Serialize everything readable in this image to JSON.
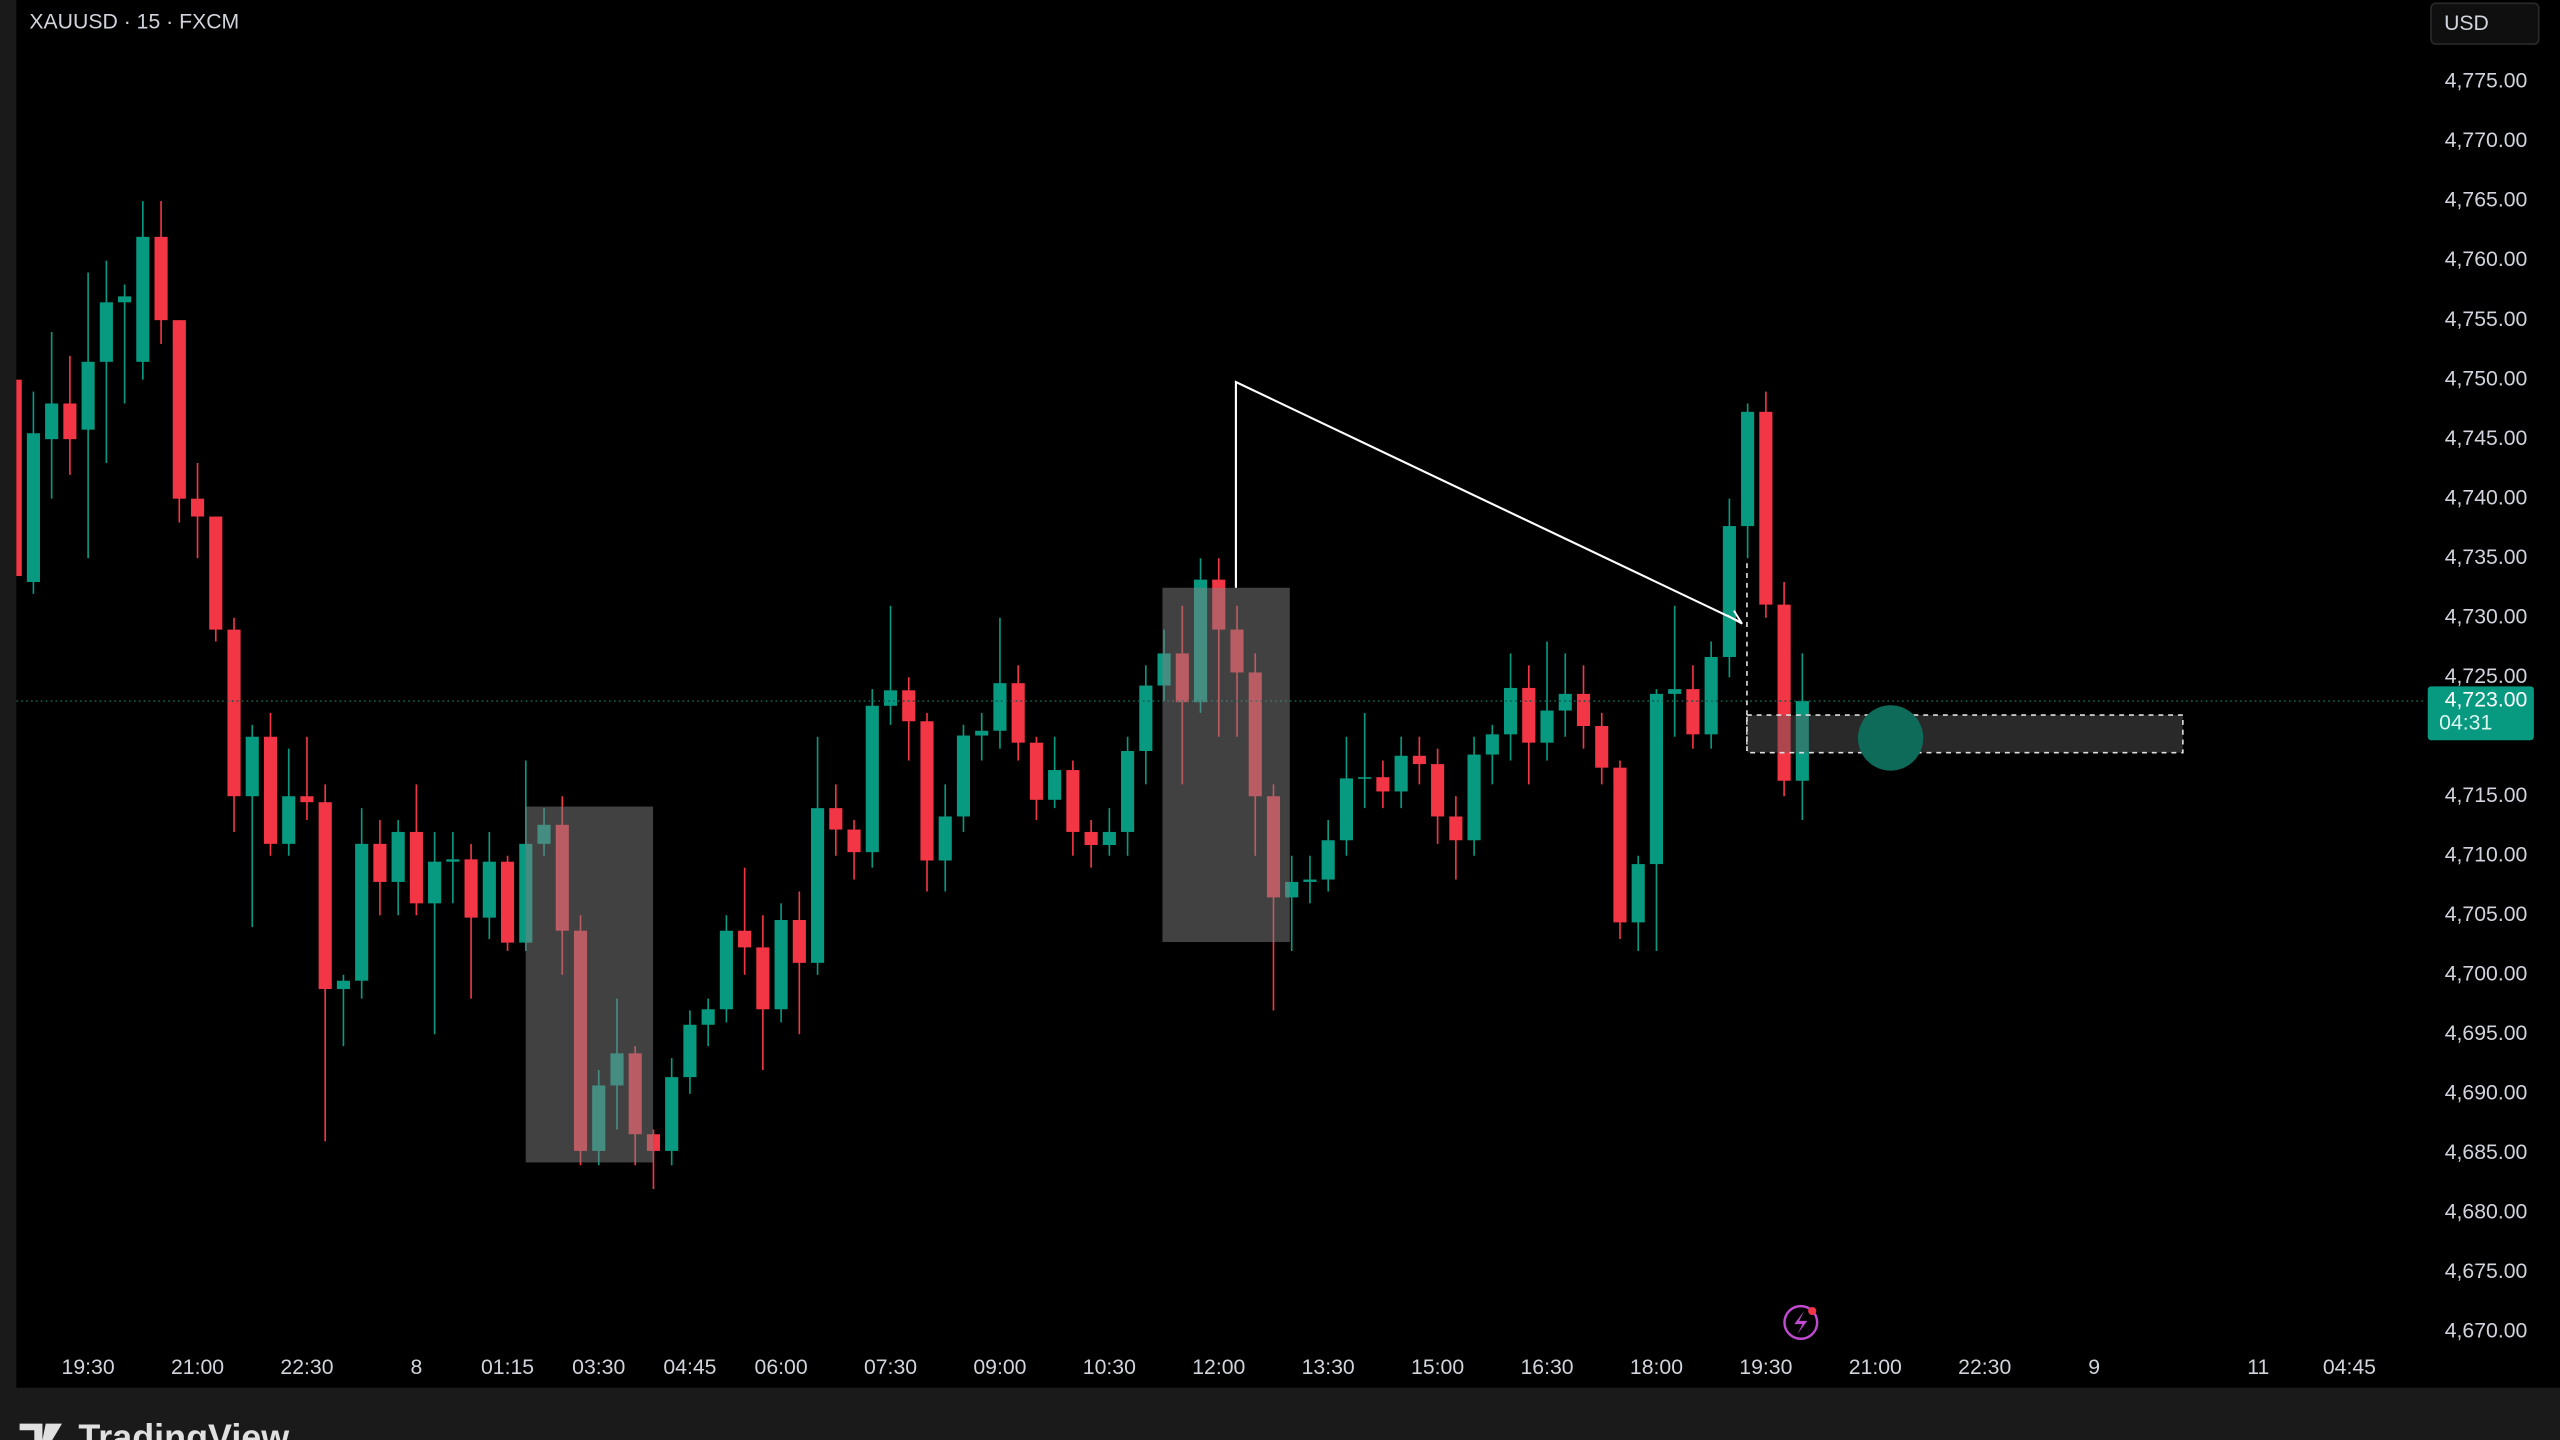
{
  "chart_data": {
    "type": "candlestick",
    "title": "XAUUSD · 15 · FXCM",
    "currency": "USD",
    "brand": "TradingView",
    "up_color": "#089981",
    "down_color": "#f23645",
    "grid": false,
    "open": [
      4750,
      4733,
      4745,
      4748,
      4745.8,
      4751.5,
      4756.5,
      4751.5,
      4762,
      4755,
      4740,
      4738.5,
      4729,
      4715,
      4720,
      4711,
      4715,
      4714.5,
      4698.8,
      4699.5,
      4711,
      4707.8,
      4712,
      4706,
      4709.5,
      4709.7,
      4704.8,
      4709.5,
      4702.7,
      4711,
      4712.6,
      4703.7,
      4685.2,
      4690.7,
      4693.4,
      4686.6,
      4685.2,
      4691.4,
      4695.8,
      4697.1,
      4703.7,
      4702.3,
      4697.1,
      4704.6,
      4701,
      4714,
      4712.2,
      4710.3,
      4722.6,
      4723.9,
      4721.3,
      4709.6,
      4713.3,
      4720.1,
      4720.5,
      4724.5,
      4719.5,
      4714.7,
      4717.2,
      4712,
      4710.9,
      4712,
      4718.8,
      4724.3,
      4727,
      4722.9,
      4733.2,
      4729,
      4725.4,
      4715,
      4706.5,
      4707.8,
      4708,
      4711.3,
      4716.5,
      4716.6,
      4715.4,
      4718.4,
      4717.7,
      4713.3,
      4711.3,
      4718.5,
      4720.2,
      4724.1,
      4719.5,
      4722.2,
      4723.6,
      4720.9,
      4717.4,
      4704.4,
      4709.3,
      4723.6,
      4724,
      4720.2,
      4726.7,
      4737.7,
      4747.3,
      4731.1,
      4716.3
    ],
    "high": [
      4750,
      4749,
      4754,
      4752,
      4759,
      4760,
      4758,
      4765,
      4765,
      4755,
      4743,
      4738.5,
      4730,
      4721,
      4722,
      4719,
      4720,
      4716,
      4700,
      4714,
      4713,
      4713,
      4716,
      4712,
      4712,
      4711,
      4712,
      4710,
      4718,
      4714,
      4715,
      4705,
      4692,
      4698,
      4694,
      4687,
      4693,
      4697,
      4698,
      4705,
      4709,
      4705,
      4706,
      4707,
      4720,
      4716,
      4713,
      4724,
      4731,
      4725,
      4722,
      4716,
      4721,
      4722,
      4730,
      4726,
      4720,
      4720,
      4718,
      4713,
      4714,
      4720,
      4726,
      4729,
      4731,
      4735,
      4735,
      4731,
      4727,
      4716,
      4710,
      4710,
      4713,
      4720,
      4722,
      4718,
      4720,
      4720,
      4719,
      4715,
      4720,
      4721,
      4727,
      4726,
      4728,
      4727,
      4726,
      4722,
      4718,
      4710,
      4724,
      4731,
      4726,
      4728,
      4740,
      4748,
      4749,
      4733,
      4727
    ],
    "low": [
      4733,
      4732,
      4740,
      4742,
      4735,
      4743,
      4748,
      4750,
      4753,
      4738,
      4735,
      4728,
      4712,
      4704,
      4710,
      4710,
      4713,
      4686,
      4694,
      4698,
      4705,
      4705,
      4705,
      4695,
      4706,
      4698,
      4703,
      4702,
      4702,
      4710,
      4700,
      4684,
      4684,
      4687,
      4684,
      4682,
      4684,
      4690,
      4694,
      4696,
      4700,
      4692,
      4696,
      4695,
      4700,
      4710,
      4708,
      4709,
      4721,
      4718,
      4707,
      4707,
      4712,
      4718,
      4719,
      4718,
      4713,
      4714,
      4710,
      4709,
      4710,
      4710,
      4716,
      4723,
      4716,
      4722,
      4720,
      4720,
      4710,
      4697,
      4702,
      4706,
      4707,
      4710,
      4714,
      4714,
      4714,
      4716,
      4711,
      4708,
      4710,
      4716,
      4718,
      4716,
      4718,
      4720,
      4719,
      4716,
      4703,
      4702,
      4702,
      4720,
      4719,
      4719,
      4725,
      4735,
      4730,
      4715,
      4713
    ],
    "close": [
      4733.5,
      4745.5,
      4748,
      4745,
      4751.5,
      4756.5,
      4757,
      4762,
      4755,
      4740,
      4738.5,
      4729,
      4715,
      4720,
      4711,
      4715,
      4714.5,
      4698.8,
      4699.5,
      4711,
      4707.8,
      4712,
      4706,
      4709.5,
      4709.7,
      4704.8,
      4709.5,
      4702.7,
      4711,
      4712.6,
      4703.7,
      4685.2,
      4690.7,
      4693.4,
      4686.6,
      4685.2,
      4691.4,
      4695.8,
      4697.1,
      4703.7,
      4702.3,
      4697.1,
      4704.6,
      4701,
      4714,
      4712.2,
      4710.3,
      4722.6,
      4723.9,
      4721.3,
      4709.6,
      4713.3,
      4720.1,
      4720.5,
      4724.5,
      4719.5,
      4714.7,
      4717.2,
      4712,
      4710.9,
      4712,
      4718.8,
      4724.3,
      4727,
      4722.9,
      4733.2,
      4729,
      4725.4,
      4715,
      4706.5,
      4707.8,
      4708,
      4711.3,
      4716.5,
      4716.6,
      4715.4,
      4718.4,
      4717.7,
      4713.3,
      4711.3,
      4718.5,
      4720.2,
      4724.1,
      4719.5,
      4722.2,
      4723.6,
      4720.9,
      4717.4,
      4704.4,
      4709.3,
      4723.6,
      4724,
      4720.2,
      4726.7,
      4737.7,
      4747.3,
      4731.1,
      4716.3,
      4723
    ],
    "xlim": [
      0,
      132
    ],
    "xticks": [
      {
        "value": 4,
        "label": "19:30"
      },
      {
        "value": 10,
        "label": "21:00"
      },
      {
        "value": 16,
        "label": "22:30"
      },
      {
        "value": 22,
        "label": "8"
      },
      {
        "value": 27,
        "label": "01:15"
      },
      {
        "value": 32,
        "label": "03:30"
      },
      {
        "value": 37,
        "label": "04:45"
      },
      {
        "value": 42,
        "label": "06:00"
      },
      {
        "value": 48,
        "label": "07:30"
      },
      {
        "value": 54,
        "label": "09:00"
      },
      {
        "value": 60,
        "label": "10:30"
      },
      {
        "value": 66,
        "label": "12:00"
      },
      {
        "value": 72,
        "label": "13:30"
      },
      {
        "value": 78,
        "label": "15:00"
      },
      {
        "value": 84,
        "label": "16:30"
      },
      {
        "value": 90,
        "label": "18:00"
      },
      {
        "value": 96,
        "label": "19:30"
      },
      {
        "value": 102,
        "label": "21:00"
      },
      {
        "value": 108,
        "label": "22:30"
      },
      {
        "value": 114,
        "label": "9"
      },
      {
        "value": 123,
        "label": "11"
      },
      {
        "value": 128,
        "label": "04:45"
      }
    ],
    "ylim": [
      4665.3,
      4781.9
    ],
    "yticks": [
      {
        "value": 4670,
        "label": "4,670.00"
      },
      {
        "value": 4675,
        "label": "4,675.00"
      },
      {
        "value": 4680,
        "label": "4,680.00"
      },
      {
        "value": 4685,
        "label": "4,685.00"
      },
      {
        "value": 4690,
        "label": "4,690.00"
      },
      {
        "value": 4695,
        "label": "4,695.00"
      },
      {
        "value": 4700,
        "label": "4,700.00"
      },
      {
        "value": 4705,
        "label": "4,705.00"
      },
      {
        "value": 4710,
        "label": "4,710.00"
      },
      {
        "value": 4715,
        "label": "4,715.00"
      },
      {
        "value": 4725,
        "label": "4,725.00"
      },
      {
        "value": 4730,
        "label": "4,730.00"
      },
      {
        "value": 4735,
        "label": "4,735.00"
      },
      {
        "value": 4740,
        "label": "4,740.00"
      },
      {
        "value": 4745,
        "label": "4,745.00"
      },
      {
        "value": 4750,
        "label": "4,750.00"
      },
      {
        "value": 4755,
        "label": "4,755.00"
      },
      {
        "value": 4760,
        "label": "4,760.00"
      },
      {
        "value": 4765,
        "label": "4,765.00"
      },
      {
        "value": 4770,
        "label": "4,770.00"
      },
      {
        "value": 4775,
        "label": "4,775.00"
      }
    ],
    "last_price": {
      "value": 4723,
      "label": "4,723.00"
    },
    "countdown": "04:31"
  }
}
